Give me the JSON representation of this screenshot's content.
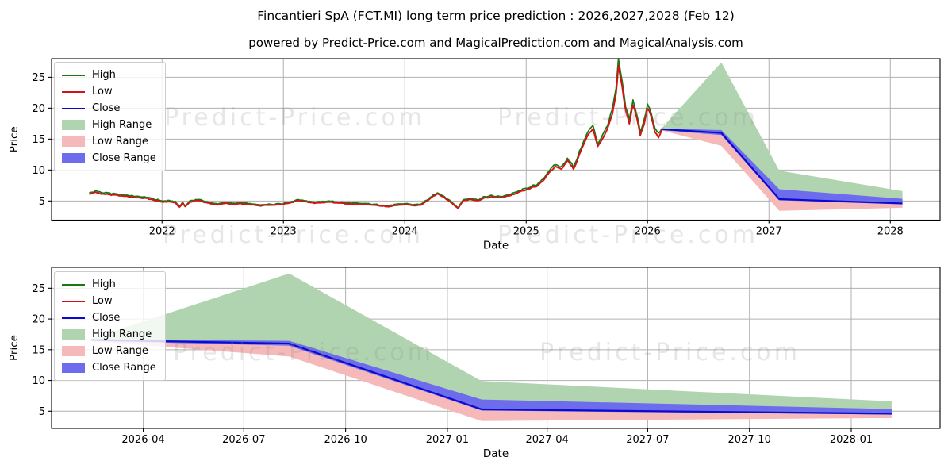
{
  "figure": {
    "title": "Fincantieri SpA (FCT.MI) long term price prediction : 2026,2027,2028 (Feb 12)",
    "subtitle": "powered by Predict-Price.com and MagicalPrediction.com and MagicalAnalysis.com",
    "watermark_text": "Predict-Price.com",
    "background": "#ffffff"
  },
  "colors": {
    "high_line": "#157a15",
    "low_line": "#d41414",
    "close_line": "#0b0bcf",
    "high_range_fill": "#b0d4b0",
    "low_range_fill": "#f6b9b9",
    "close_range_fill": "#6c6cec",
    "grid": "#b0b0b0",
    "axis": "#000000",
    "tick_label": "#000000",
    "watermark": "#8a8a8a",
    "legend_border": "#cccccc"
  },
  "legend": {
    "items": [
      {
        "label": "High",
        "swatch": "line",
        "color": "high_line"
      },
      {
        "label": "Low",
        "swatch": "line",
        "color": "low_line"
      },
      {
        "label": "Close",
        "swatch": "line",
        "color": "close_line"
      },
      {
        "label": "High Range",
        "swatch": "patch",
        "color": "high_range_fill"
      },
      {
        "label": "Low Range",
        "swatch": "patch",
        "color": "low_range_fill"
      },
      {
        "label": "Close Range",
        "swatch": "patch",
        "color": "close_range_fill"
      }
    ]
  },
  "chart_data": [
    {
      "type": "line",
      "name": "full-history-and-forecast",
      "xlabel": "Date",
      "ylabel": "Price",
      "xlim": [
        2021.09,
        2028.41
      ],
      "ylim": [
        1.9,
        28.0
      ],
      "grid": true,
      "legend_position": "upper left",
      "x_ticks": [
        {
          "v": 2022,
          "label": "2022"
        },
        {
          "v": 2023,
          "label": "2023"
        },
        {
          "v": 2024,
          "label": "2024"
        },
        {
          "v": 2025,
          "label": "2025"
        },
        {
          "v": 2026,
          "label": "2026"
        },
        {
          "v": 2027,
          "label": "2027"
        },
        {
          "v": 2028,
          "label": "2028"
        }
      ],
      "y_ticks": [
        {
          "v": 5,
          "label": "5"
        },
        {
          "v": 10,
          "label": "10"
        },
        {
          "v": 15,
          "label": "15"
        },
        {
          "v": 20,
          "label": "20"
        },
        {
          "v": 25,
          "label": "25"
        }
      ],
      "series": {
        "history": {
          "note": "daily High/Low lines tightly tracking Close; values are close anchors",
          "t": [
            2021.4,
            2021.45,
            2021.5,
            2021.57,
            2021.64,
            2021.72,
            2021.8,
            2021.88,
            2021.94,
            2022.0,
            2022.06,
            2022.11,
            2022.14,
            2022.17,
            2022.19,
            2022.23,
            2022.28,
            2022.33,
            2022.4,
            2022.46,
            2022.52,
            2022.58,
            2022.65,
            2022.72,
            2022.8,
            2022.88,
            2022.94,
            2023.0,
            2023.08,
            2023.12,
            2023.18,
            2023.25,
            2023.32,
            2023.4,
            2023.47,
            2023.54,
            2023.62,
            2023.7,
            2023.78,
            2023.84,
            2023.9,
            2023.96,
            2024.02,
            2024.08,
            2024.14,
            2024.2,
            2024.27,
            2024.33,
            2024.39,
            2024.44,
            2024.48,
            2024.54,
            2024.6,
            2024.66,
            2024.72,
            2024.78,
            2024.84,
            2024.9,
            2024.96,
            2025.02,
            2025.08,
            2025.14,
            2025.19,
            2025.24,
            2025.29,
            2025.34,
            2025.39,
            2025.45,
            2025.51,
            2025.55,
            2025.59,
            2025.63,
            2025.67,
            2025.71,
            2025.74,
            2025.76,
            2025.79,
            2025.82,
            2025.85,
            2025.88,
            2025.91,
            2025.94,
            2025.97,
            2026.0,
            2026.03,
            2026.06,
            2026.09,
            2026.118
          ],
          "close": [
            6.15,
            6.45,
            6.25,
            6.1,
            5.9,
            5.8,
            5.6,
            5.45,
            5.15,
            4.9,
            4.95,
            4.75,
            3.95,
            4.7,
            4.1,
            4.9,
            5.15,
            5.0,
            4.6,
            4.45,
            4.65,
            4.55,
            4.6,
            4.45,
            4.25,
            4.35,
            4.45,
            4.55,
            4.9,
            5.15,
            4.95,
            4.75,
            4.8,
            4.85,
            4.7,
            4.6,
            4.5,
            4.4,
            4.3,
            4.15,
            4.3,
            4.4,
            4.4,
            4.3,
            4.45,
            5.3,
            6.2,
            5.6,
            4.7,
            3.8,
            5.1,
            5.3,
            5.15,
            5.6,
            5.7,
            5.55,
            5.8,
            6.2,
            6.6,
            7.0,
            7.4,
            8.3,
            9.7,
            10.8,
            10.1,
            11.7,
            10.3,
            13.2,
            15.9,
            16.9,
            13.8,
            15.3,
            17.1,
            19.3,
            22.5,
            27.3,
            23.5,
            19.5,
            17.6,
            20.6,
            18.6,
            15.7,
            17.6,
            20.3,
            18.8,
            16.4,
            15.6,
            16.6
          ]
        },
        "forecast": {
          "dates": [
            "2026-02-12",
            "2026-08-10",
            "2027-02-01",
            "2028-02-06"
          ],
          "t": [
            2026.118,
            2026.608,
            2027.085,
            2028.1
          ],
          "close": [
            16.6,
            16.0,
            5.3,
            4.6
          ],
          "high_range_top": [
            16.8,
            27.4,
            9.9,
            6.6
          ],
          "low_range_bottom": [
            16.4,
            13.9,
            3.4,
            3.9
          ],
          "close_range_top": [
            16.7,
            16.45,
            6.9,
            5.35
          ],
          "close_range_bottom": [
            16.45,
            15.65,
            5.1,
            4.45
          ]
        }
      }
    },
    {
      "type": "line",
      "name": "forecast-detail",
      "xlabel": "Date",
      "ylabel": "Price",
      "xlim": [
        2026.02,
        2028.22
      ],
      "ylim": [
        2.2,
        28.4
      ],
      "grid": true,
      "legend_position": "upper left",
      "x_ticks": [
        {
          "v": 2026.247,
          "label": "2026-04"
        },
        {
          "v": 2026.496,
          "label": "2026-07"
        },
        {
          "v": 2026.748,
          "label": "2026-10"
        },
        {
          "v": 2027.0,
          "label": "2027-01"
        },
        {
          "v": 2027.247,
          "label": "2027-04"
        },
        {
          "v": 2027.496,
          "label": "2027-07"
        },
        {
          "v": 2027.748,
          "label": "2027-10"
        },
        {
          "v": 2028.0,
          "label": "2028-01"
        }
      ],
      "y_ticks": [
        {
          "v": 5,
          "label": "5"
        },
        {
          "v": 10,
          "label": "10"
        },
        {
          "v": 15,
          "label": "15"
        },
        {
          "v": 20,
          "label": "20"
        },
        {
          "v": 25,
          "label": "25"
        }
      ],
      "series": {
        "forecast": {
          "dates": [
            "2026-02-12",
            "2026-08-10",
            "2027-02-01",
            "2028-02-06"
          ],
          "t": [
            2026.118,
            2026.608,
            2027.085,
            2028.1
          ],
          "close": [
            16.6,
            16.0,
            5.3,
            4.6
          ],
          "high_range_top": [
            16.8,
            27.4,
            9.9,
            6.6
          ],
          "low_range_bottom": [
            16.4,
            13.9,
            3.4,
            3.9
          ],
          "close_range_top": [
            16.7,
            16.45,
            6.9,
            5.35
          ],
          "close_range_bottom": [
            16.45,
            15.65,
            5.1,
            4.45
          ]
        }
      }
    }
  ]
}
